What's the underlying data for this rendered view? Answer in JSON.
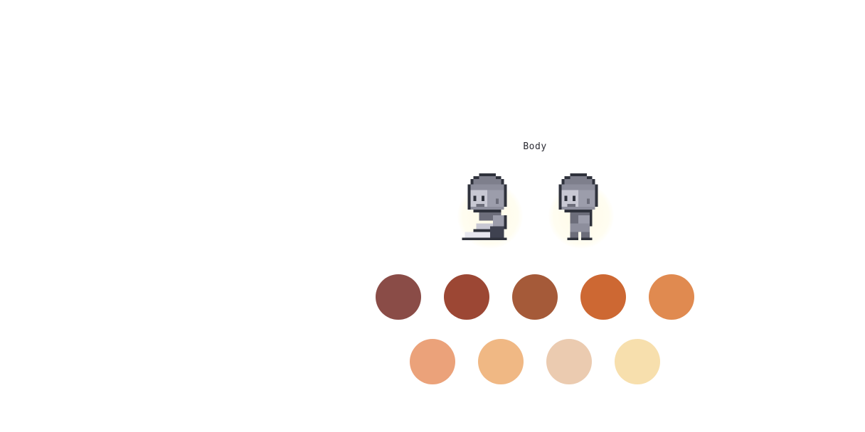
{
  "customizer": {
    "section_title": "Body",
    "previews": [
      {
        "pose": "sitting"
      },
      {
        "pose": "standing"
      }
    ],
    "skin_swatches_row1": [
      "#8a4c47",
      "#9c4734",
      "#a55a39",
      "#cd6833",
      "#e08a50"
    ],
    "skin_swatches_row2": [
      "#eba27a",
      "#f0b884",
      "#ebcbb0",
      "#f7dfad"
    ]
  }
}
